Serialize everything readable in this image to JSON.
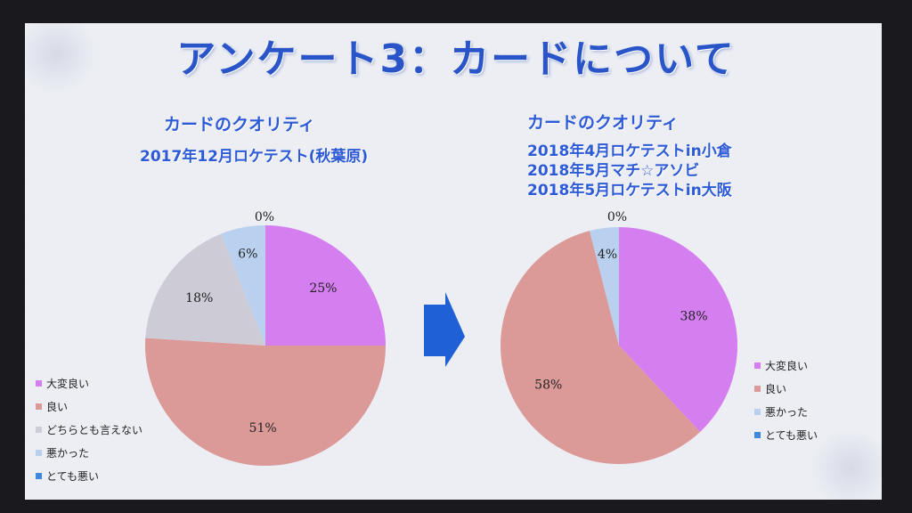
{
  "title": "アンケート3：カードについて",
  "left": {
    "heading": "カードのクオリティ",
    "subtitle": "2017年12月ロケテスト(秋葉原)"
  },
  "right": {
    "heading": "カードのクオリティ",
    "subtitle_lines": [
      "2018年4月ロケテストin小倉",
      "2018年5月マチ☆アソビ",
      "2018年5月ロケテストin大阪"
    ]
  },
  "colors": {
    "very_good": "#d57ef0",
    "good": "#db9a98",
    "neutral": "#cdcbd6",
    "bad": "#b9d0ee",
    "very_bad": "#3f88e0",
    "arrow": "#1f60d6"
  },
  "chart_data": [
    {
      "type": "pie",
      "title": "カードのクオリティ",
      "slices": [
        {
          "label": "大変良い",
          "value": 25,
          "display": "25%"
        },
        {
          "label": "良い",
          "value": 51,
          "display": "51%"
        },
        {
          "label": "どちらとも言えない",
          "value": 18,
          "display": "18%"
        },
        {
          "label": "悪かった",
          "value": 6,
          "display": "6%"
        },
        {
          "label": "とても悪い",
          "value": 0,
          "display": "0%"
        }
      ],
      "legend_position": "bottom-left"
    },
    {
      "type": "pie",
      "title": "カードのクオリティ",
      "slices": [
        {
          "label": "大変良い",
          "value": 38,
          "display": "38%"
        },
        {
          "label": "良い",
          "value": 58,
          "display": "58%"
        },
        {
          "label": "悪かった",
          "value": 4,
          "display": "4%"
        },
        {
          "label": "とても悪い",
          "value": 0,
          "display": "0%"
        }
      ],
      "legend_position": "right"
    }
  ]
}
